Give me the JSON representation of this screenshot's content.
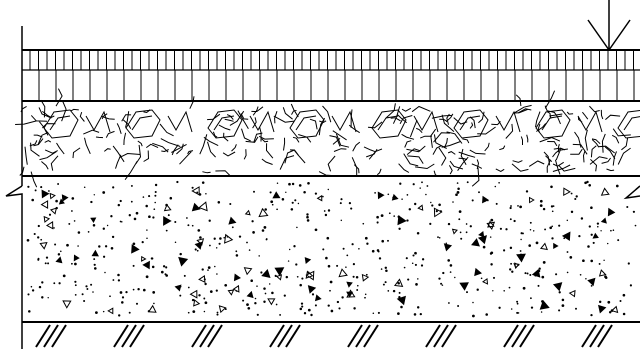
{
  "drawing": {
    "type": "pavement-layer-cross-section",
    "line_color": "#000000",
    "background": "#ffffff",
    "layers": [
      {
        "id": "surface-paving",
        "pattern": "vertical-hatch-blocks"
      },
      {
        "id": "crushed-stone-base",
        "pattern": "rubble-aggregate"
      },
      {
        "id": "concrete-subbase",
        "pattern": "stippled-concrete"
      },
      {
        "id": "ground",
        "pattern": "earth-diagonal-hatch"
      }
    ],
    "symbols": [
      "load-arrow-icon",
      "break-line-left-icon",
      "break-line-right-icon"
    ]
  }
}
